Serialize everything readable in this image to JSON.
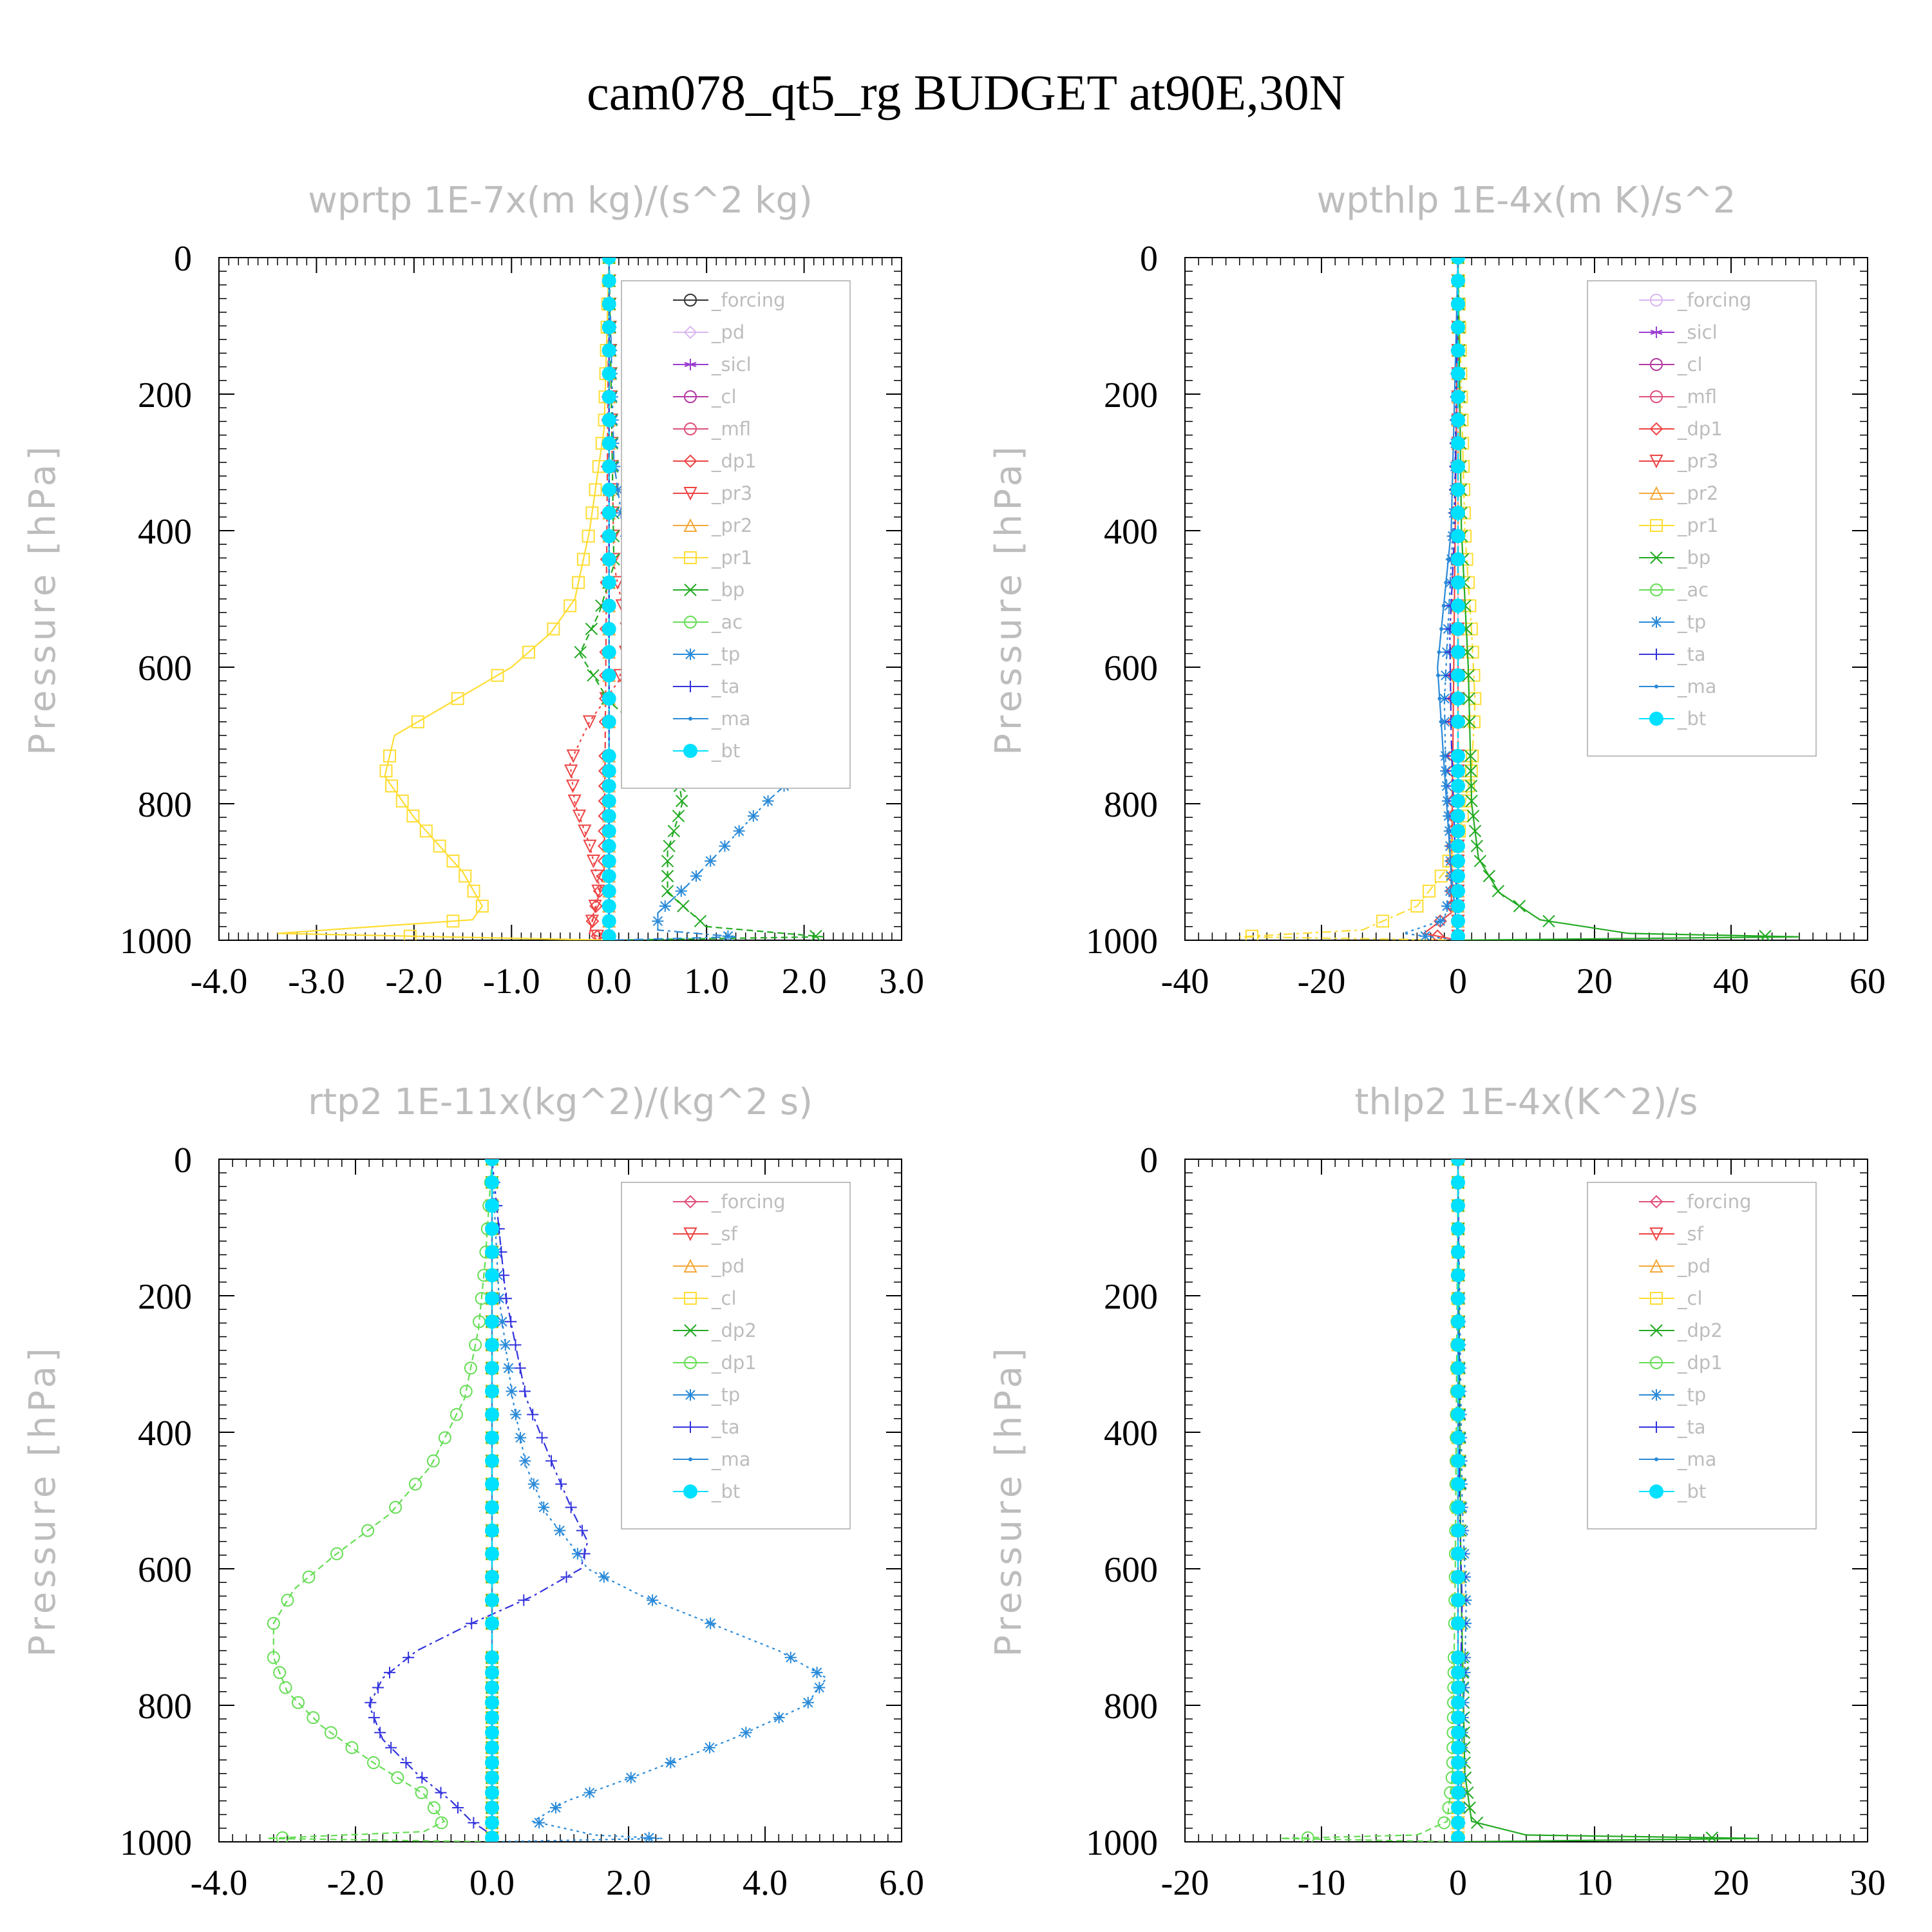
{
  "title": "cam078_qt5_rg  BUDGET at90E,30N",
  "colors": {
    "black": "#333333",
    "lilac": "#d9b8f0",
    "purple": "#9a3bd1",
    "magenta": "#b23aa0",
    "crimson": "#e0507a",
    "red": "#ee4444",
    "orange": "#f4a83a",
    "gold": "#f0c000",
    "yellow": "#ffdd33",
    "green": "#22aa22",
    "lightgreen": "#66dd55",
    "blue": "#2a8ad8",
    "indigo": "#3333dd",
    "cyan": "#00e0ff"
  },
  "chart_data": [
    {
      "type": "line",
      "title": "wprtp  1E-7x(m kg)/(s^2 kg)",
      "ylabel": "Pressure [hPa]",
      "xlim": [
        -4.0,
        3.0
      ],
      "xticks": [
        -4.0,
        -3.0,
        -2.0,
        -1.0,
        0.0,
        1.0,
        2.0,
        3.0
      ],
      "xtick_labels": [
        "-4.0",
        "-3.0",
        "-2.0",
        "-1.0",
        "0.0",
        "1.0",
        "2.0",
        "3.0"
      ],
      "ylim": [
        1000,
        0
      ],
      "yticks": [
        0,
        200,
        400,
        600,
        800,
        1000
      ],
      "ytick_labels": [
        "0",
        "200",
        "400",
        "600",
        "800",
        "1000"
      ],
      "legend_position": "top-right",
      "series": [
        {
          "name": "_forcing",
          "color": "#333333",
          "marker": "circle",
          "y": [
            0,
            1000
          ],
          "x": [
            0,
            0
          ]
        },
        {
          "name": "_pd",
          "color": "#d9b8f0",
          "marker": "diamond",
          "y": [
            0,
            1000
          ],
          "x": [
            0,
            0
          ]
        },
        {
          "name": "_sicl",
          "color": "#9a3bd1",
          "marker": "star",
          "y": [
            0,
            1000
          ],
          "x": [
            0,
            0
          ]
        },
        {
          "name": "_cl",
          "color": "#b23aa0",
          "marker": "circle",
          "y": [
            0,
            1000
          ],
          "x": [
            0,
            0
          ]
        },
        {
          "name": "_mfl",
          "color": "#e0507a",
          "marker": "circle",
          "y": [
            0,
            1000
          ],
          "x": [
            0,
            0
          ]
        },
        {
          "name": "_dp1",
          "color": "#ee4444",
          "marker": "diamond",
          "y": [
            0,
            900,
            990,
            1000
          ],
          "x": [
            0,
            -0.05,
            -0.2,
            0
          ]
        },
        {
          "name": "_pr3",
          "color": "#ee4444",
          "marker": "tri-down",
          "y": [
            0,
            450,
            520,
            560,
            620,
            680,
            740,
            800,
            860,
            920,
            990,
            1000
          ],
          "x": [
            0,
            0.05,
            0.15,
            0.2,
            0.1,
            -0.2,
            -0.4,
            -0.35,
            -0.2,
            -0.1,
            -0.2,
            0
          ]
        },
        {
          "name": "_pr2",
          "color": "#f4a83a",
          "marker": "tri-up",
          "y": [
            0,
            1000
          ],
          "x": [
            0,
            0
          ]
        },
        {
          "name": "_pr1",
          "color": "#ffdd33",
          "marker": "square",
          "y": [
            0,
            250,
            400,
            500,
            550,
            600,
            650,
            700,
            760,
            820,
            900,
            950,
            970,
            990,
            1000
          ],
          "x": [
            0,
            -0.05,
            -0.2,
            -0.35,
            -0.6,
            -1.0,
            -1.6,
            -2.2,
            -2.3,
            -2.0,
            -1.5,
            -1.3,
            -1.4,
            -3.4,
            0
          ]
        },
        {
          "name": "_bp",
          "color": "#22aa22",
          "marker": "x",
          "y": [
            0,
            450,
            520,
            580,
            650,
            700,
            750,
            800,
            870,
            930,
            980,
            995,
            1000
          ],
          "x": [
            0,
            0.05,
            -0.1,
            -0.3,
            0.0,
            0.4,
            0.7,
            0.75,
            0.6,
            0.6,
            1.0,
            2.2,
            0
          ]
        },
        {
          "name": "_ac",
          "color": "#66dd55",
          "marker": "circle",
          "y": [
            0,
            1000
          ],
          "x": [
            0,
            0
          ]
        },
        {
          "name": "_tp",
          "color": "#2a8ad8",
          "marker": "asterisk",
          "y": [
            0,
            300,
            400,
            450,
            520,
            580,
            650,
            700,
            730,
            760,
            800,
            860,
            920,
            960,
            985,
            995,
            1000
          ],
          "x": [
            0,
            0.05,
            0.15,
            0.3,
            0.6,
            1.0,
            1.6,
            1.85,
            1.95,
            1.9,
            1.6,
            1.2,
            0.8,
            0.5,
            0.5,
            1.3,
            0
          ]
        },
        {
          "name": "_ta",
          "color": "#3333dd",
          "marker": "plus",
          "y": [
            0,
            1000
          ],
          "x": [
            0,
            0
          ]
        },
        {
          "name": "_ma",
          "color": "#2a8ad8",
          "marker": "dot",
          "y": [
            0,
            1000
          ],
          "x": [
            0,
            0
          ]
        },
        {
          "name": "_bt",
          "color": "#00e0ff",
          "marker": "filled",
          "y": [
            0,
            1000
          ],
          "x": [
            0,
            0
          ]
        }
      ]
    },
    {
      "type": "line",
      "title": "wpthlp  1E-4x(m K)/s^2",
      "ylabel": "Pressure [hPa]",
      "xlim": [
        -40,
        60
      ],
      "xticks": [
        -40,
        -20,
        0,
        20,
        40,
        60
      ],
      "xtick_labels": [
        "-40",
        "-20",
        "0",
        "20",
        "40",
        "60"
      ],
      "ylim": [
        1000,
        0
      ],
      "yticks": [
        0,
        200,
        400,
        600,
        800,
        1000
      ],
      "ytick_labels": [
        "0",
        "200",
        "400",
        "600",
        "800",
        "1000"
      ],
      "legend_position": "top-right",
      "series": [
        {
          "name": "_forcing",
          "color": "#d9b8f0",
          "marker": "circle",
          "y": [
            0,
            1000
          ],
          "x": [
            0,
            0
          ]
        },
        {
          "name": "_sicl",
          "color": "#9a3bd1",
          "marker": "star",
          "y": [
            0,
            1000
          ],
          "x": [
            0,
            0
          ]
        },
        {
          "name": "_cl",
          "color": "#b23aa0",
          "marker": "circle",
          "y": [
            0,
            1000
          ],
          "x": [
            0,
            0
          ]
        },
        {
          "name": "_mfl",
          "color": "#e0507a",
          "marker": "circle",
          "y": [
            0,
            1000
          ],
          "x": [
            0,
            0
          ]
        },
        {
          "name": "_dp1",
          "color": "#ee4444",
          "marker": "diamond",
          "y": [
            0,
            960,
            990,
            1000
          ],
          "x": [
            0,
            -1,
            -5,
            0
          ]
        },
        {
          "name": "_pr3",
          "color": "#ee4444",
          "marker": "tri-down",
          "y": [
            0,
            1000
          ],
          "x": [
            0,
            0
          ]
        },
        {
          "name": "_pr2",
          "color": "#f4a83a",
          "marker": "tri-up",
          "y": [
            0,
            1000
          ],
          "x": [
            0,
            0
          ]
        },
        {
          "name": "_pr1",
          "color": "#ffdd33",
          "marker": "square",
          "y": [
            0,
            400,
            550,
            650,
            750,
            850,
            900,
            950,
            985,
            995,
            1000
          ],
          "x": [
            0,
            1,
            2,
            2.5,
            2,
            0,
            -2,
            -6,
            -14,
            -32,
            0
          ]
        },
        {
          "name": "_bp",
          "color": "#22aa22",
          "marker": "x",
          "y": [
            0,
            400,
            600,
            800,
            880,
            930,
            970,
            990,
            995,
            1000
          ],
          "x": [
            0,
            0.5,
            1.5,
            2,
            3,
            6,
            12,
            25,
            50,
            0
          ]
        },
        {
          "name": "_ac",
          "color": "#66dd55",
          "marker": "circle",
          "y": [
            0,
            1000
          ],
          "x": [
            0,
            0
          ]
        },
        {
          "name": "_tp",
          "color": "#2a8ad8",
          "marker": "asterisk",
          "y": [
            0,
            350,
            450,
            550,
            650,
            750,
            850,
            920,
            970,
            990,
            1000
          ],
          "x": [
            0,
            -0.5,
            -1,
            -1.5,
            -2,
            -1.8,
            -1.2,
            -1,
            -2,
            -8,
            0
          ]
        },
        {
          "name": "_ta",
          "color": "#3333dd",
          "marker": "plus",
          "y": [
            0,
            400,
            550,
            700,
            850,
            1000
          ],
          "x": [
            0,
            -0.5,
            -1.2,
            -1,
            -0.5,
            0
          ]
        },
        {
          "name": "_ma",
          "color": "#2a8ad8",
          "marker": "dot",
          "y": [
            0,
            400,
            600,
            750,
            900,
            1000
          ],
          "x": [
            0,
            -1,
            -3,
            -2,
            -1,
            0
          ]
        },
        {
          "name": "_bt",
          "color": "#00e0ff",
          "marker": "filled",
          "y": [
            0,
            1000
          ],
          "x": [
            0,
            0
          ]
        }
      ]
    },
    {
      "type": "line",
      "title": "rtp2  1E-11x(kg^2)/(kg^2 s)",
      "ylabel": "Pressure [hPa]",
      "xlim": [
        -4.0,
        6.0
      ],
      "xticks": [
        -4.0,
        -2.0,
        0.0,
        2.0,
        4.0,
        6.0
      ],
      "xtick_labels": [
        "-4.0",
        "-2.0",
        "0.0",
        "2.0",
        "4.0",
        "6.0"
      ],
      "ylim": [
        1000,
        0
      ],
      "yticks": [
        0,
        200,
        400,
        600,
        800,
        1000
      ],
      "ytick_labels": [
        "0",
        "200",
        "400",
        "600",
        "800",
        "1000"
      ],
      "legend_position": "top-right",
      "series": [
        {
          "name": "_forcing",
          "color": "#e0507a",
          "marker": "diamond",
          "y": [
            0,
            1000
          ],
          "x": [
            0,
            0
          ]
        },
        {
          "name": "_sf",
          "color": "#ee4444",
          "marker": "tri-down",
          "y": [
            0,
            1000
          ],
          "x": [
            0,
            0
          ]
        },
        {
          "name": "_pd",
          "color": "#f4a83a",
          "marker": "tri-up",
          "y": [
            0,
            1000
          ],
          "x": [
            0,
            0
          ]
        },
        {
          "name": "_cl",
          "color": "#ffdd33",
          "marker": "square",
          "y": [
            0,
            1000
          ],
          "x": [
            0,
            0
          ]
        },
        {
          "name": "_dp2",
          "color": "#22aa22",
          "marker": "x",
          "y": [
            0,
            1000
          ],
          "x": [
            0,
            0
          ]
        },
        {
          "name": "_dp1",
          "color": "#66dd55",
          "marker": "circle",
          "y": [
            0,
            150,
            250,
            350,
            450,
            520,
            580,
            630,
            680,
            730,
            780,
            830,
            880,
            930,
            970,
            985,
            995,
            1000
          ],
          "x": [
            0,
            -0.1,
            -0.2,
            -0.4,
            -0.9,
            -1.5,
            -2.3,
            -2.9,
            -3.2,
            -3.2,
            -3.0,
            -2.5,
            -1.8,
            -1.0,
            -0.7,
            -1.0,
            -3.3,
            0
          ]
        },
        {
          "name": "_tp",
          "color": "#2a8ad8",
          "marker": "asterisk",
          "y": [
            0,
            200,
            350,
            450,
            520,
            570,
            600,
            640,
            680,
            720,
            760,
            800,
            850,
            900,
            940,
            970,
            990,
            995,
            1000
          ],
          "x": [
            0,
            0.1,
            0.3,
            0.5,
            0.8,
            1.2,
            1.4,
            2.2,
            3.2,
            4.2,
            4.9,
            4.6,
            3.5,
            2.2,
            1.1,
            0.6,
            1.5,
            2.5,
            0
          ]
        },
        {
          "name": "_ta",
          "color": "#3333dd",
          "marker": "plus",
          "y": [
            0,
            200,
            350,
            450,
            520,
            560,
            600,
            640,
            680,
            720,
            760,
            800,
            850,
            900,
            940,
            970,
            990,
            1000
          ],
          "x": [
            0,
            0.2,
            0.5,
            0.9,
            1.2,
            1.4,
            1.3,
            0.6,
            -0.3,
            -1.1,
            -1.6,
            -1.8,
            -1.6,
            -1.1,
            -0.6,
            -0.3,
            0.0,
            0
          ]
        },
        {
          "name": "_ma",
          "color": "#2a8ad8",
          "marker": "dot",
          "y": [
            0,
            1000
          ],
          "x": [
            0,
            0
          ]
        },
        {
          "name": "_bt",
          "color": "#00e0ff",
          "marker": "filled",
          "y": [
            0,
            1000
          ],
          "x": [
            0,
            0
          ]
        }
      ]
    },
    {
      "type": "line",
      "title": "thlp2  1E-4x(K^2)/s",
      "ylabel": "Pressure [hPa]",
      "xlim": [
        -20,
        30
      ],
      "xticks": [
        -20,
        -10,
        0,
        10,
        20,
        30
      ],
      "xtick_labels": [
        "-20",
        "-10",
        "0",
        "10",
        "20",
        "30"
      ],
      "ylim": [
        1000,
        0
      ],
      "yticks": [
        0,
        200,
        400,
        600,
        800,
        1000
      ],
      "ytick_labels": [
        "0",
        "200",
        "400",
        "600",
        "800",
        "1000"
      ],
      "legend_position": "top-right",
      "series": [
        {
          "name": "_forcing",
          "color": "#e0507a",
          "marker": "diamond",
          "y": [
            0,
            1000
          ],
          "x": [
            0,
            0
          ]
        },
        {
          "name": "_sf",
          "color": "#ee4444",
          "marker": "tri-down",
          "y": [
            0,
            1000
          ],
          "x": [
            0,
            0
          ]
        },
        {
          "name": "_pd",
          "color": "#f4a83a",
          "marker": "tri-up",
          "y": [
            0,
            1000
          ],
          "x": [
            0,
            0
          ]
        },
        {
          "name": "_cl",
          "color": "#ffdd33",
          "marker": "square",
          "y": [
            0,
            1000
          ],
          "x": [
            0,
            0
          ]
        },
        {
          "name": "_dp2",
          "color": "#22aa22",
          "marker": "x",
          "y": [
            0,
            600,
            900,
            970,
            990,
            995,
            1000
          ],
          "x": [
            0,
            0.2,
            0.5,
            1,
            5,
            22,
            0
          ]
        },
        {
          "name": "_dp1",
          "color": "#66dd55",
          "marker": "circle",
          "y": [
            0,
            600,
            900,
            970,
            990,
            995,
            1000
          ],
          "x": [
            0,
            -0.2,
            -0.4,
            -0.8,
            -3,
            -13,
            0
          ]
        },
        {
          "name": "_tp",
          "color": "#2a8ad8",
          "marker": "asterisk",
          "y": [
            0,
            500,
            650,
            750,
            850,
            950,
            1000
          ],
          "x": [
            0,
            0.3,
            0.6,
            0.5,
            0.3,
            0.2,
            0
          ]
        },
        {
          "name": "_ta",
          "color": "#3333dd",
          "marker": "plus",
          "y": [
            0,
            500,
            650,
            750,
            850,
            950,
            1000
          ],
          "x": [
            0,
            0.1,
            0.3,
            0.2,
            0.1,
            0.0,
            0
          ]
        },
        {
          "name": "_ma",
          "color": "#2a8ad8",
          "marker": "dot",
          "y": [
            0,
            1000
          ],
          "x": [
            0,
            0
          ]
        },
        {
          "name": "_bt",
          "color": "#00e0ff",
          "marker": "filled",
          "y": [
            0,
            1000
          ],
          "x": [
            0,
            0
          ]
        }
      ]
    }
  ]
}
